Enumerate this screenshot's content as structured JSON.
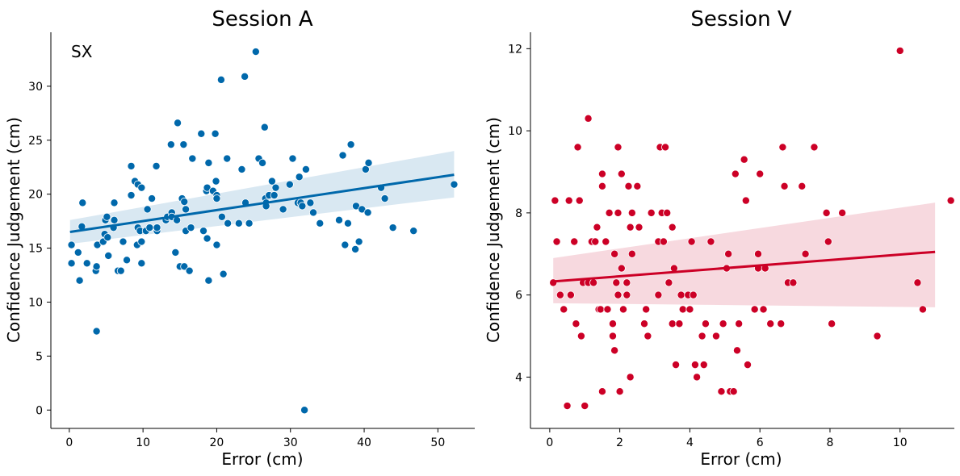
{
  "chart_data": [
    {
      "type": "scatter",
      "title": "Session A",
      "xlabel": "Error (cm)",
      "ylabel": "Confidence Judgement (cm)",
      "annotation": "SX",
      "xlim": [
        -2.5,
        55
      ],
      "ylim": [
        -1.7,
        35
      ],
      "xticks": [
        0,
        10,
        20,
        30,
        40,
        50
      ],
      "yticks": [
        0,
        5,
        10,
        15,
        20,
        25,
        30
      ],
      "color": "#0068ab",
      "regression": {
        "x": [
          0.1,
          52.2
        ],
        "y": [
          16.5,
          21.8
        ],
        "ci_lower": [
          15.4,
          19.7
        ],
        "ci_upper": [
          17.6,
          24.0
        ]
      },
      "points": [
        [
          0.3,
          15.3
        ],
        [
          0.3,
          13.6
        ],
        [
          1.2,
          14.6
        ],
        [
          1.4,
          12.0
        ],
        [
          1.7,
          17.0
        ],
        [
          1.8,
          19.2
        ],
        [
          2.4,
          13.6
        ],
        [
          3.6,
          12.9
        ],
        [
          3.7,
          13.3
        ],
        [
          3.8,
          15.3
        ],
        [
          3.7,
          7.3
        ],
        [
          4.6,
          15.6
        ],
        [
          4.8,
          16.3
        ],
        [
          4.9,
          17.6
        ],
        [
          5.1,
          17.9
        ],
        [
          5.2,
          16.0
        ],
        [
          5.3,
          14.3
        ],
        [
          6.0,
          16.9
        ],
        [
          6.1,
          17.6
        ],
        [
          6.1,
          19.2
        ],
        [
          6.6,
          12.9
        ],
        [
          7.0,
          12.9
        ],
        [
          7.3,
          15.6
        ],
        [
          7.8,
          13.9
        ],
        [
          8.4,
          19.9
        ],
        [
          8.4,
          22.6
        ],
        [
          8.9,
          21.2
        ],
        [
          9.2,
          15.3
        ],
        [
          9.3,
          20.9
        ],
        [
          9.3,
          16.9
        ],
        [
          9.6,
          16.6
        ],
        [
          9.8,
          13.6
        ],
        [
          9.8,
          15.6
        ],
        [
          9.8,
          20.6
        ],
        [
          10.4,
          16.6
        ],
        [
          10.6,
          18.6
        ],
        [
          10.9,
          16.9
        ],
        [
          11.2,
          19.6
        ],
        [
          11.8,
          22.6
        ],
        [
          11.9,
          16.6
        ],
        [
          11.9,
          16.9
        ],
        [
          13.1,
          17.6
        ],
        [
          13.3,
          17.9
        ],
        [
          13.8,
          24.6
        ],
        [
          13.9,
          18.3
        ],
        [
          13.9,
          17.9
        ],
        [
          14.4,
          14.6
        ],
        [
          14.6,
          17.6
        ],
        [
          14.7,
          26.6
        ],
        [
          15.0,
          13.3
        ],
        [
          15.3,
          19.6
        ],
        [
          15.5,
          24.6
        ],
        [
          15.6,
          19.3
        ],
        [
          15.6,
          13.3
        ],
        [
          15.8,
          16.6
        ],
        [
          15.8,
          18.6
        ],
        [
          16.3,
          12.9
        ],
        [
          16.5,
          16.9
        ],
        [
          16.7,
          23.3
        ],
        [
          17.9,
          25.6
        ],
        [
          18.2,
          16.6
        ],
        [
          18.6,
          20.3
        ],
        [
          18.7,
          20.6
        ],
        [
          18.7,
          15.9
        ],
        [
          18.9,
          22.9
        ],
        [
          18.9,
          12.0
        ],
        [
          19.5,
          20.3
        ],
        [
          19.8,
          25.6
        ],
        [
          19.9,
          21.2
        ],
        [
          20.0,
          19.9
        ],
        [
          20.0,
          19.6
        ],
        [
          20.0,
          15.3
        ],
        [
          20.6,
          30.6
        ],
        [
          20.7,
          17.9
        ],
        [
          20.9,
          12.6
        ],
        [
          21.4,
          23.3
        ],
        [
          21.5,
          17.3
        ],
        [
          23.0,
          17.3
        ],
        [
          23.4,
          22.3
        ],
        [
          23.8,
          30.9
        ],
        [
          23.9,
          19.2
        ],
        [
          24.4,
          17.3
        ],
        [
          25.3,
          33.2
        ],
        [
          25.7,
          23.3
        ],
        [
          26.2,
          22.9
        ],
        [
          26.5,
          26.2
        ],
        [
          26.6,
          19.6
        ],
        [
          26.7,
          19.2
        ],
        [
          26.7,
          18.9
        ],
        [
          27.1,
          19.9
        ],
        [
          27.5,
          21.2
        ],
        [
          27.8,
          19.9
        ],
        [
          28.0,
          20.6
        ],
        [
          29.0,
          18.6
        ],
        [
          29.9,
          20.9
        ],
        [
          30.3,
          23.3
        ],
        [
          31.0,
          19.2
        ],
        [
          31.2,
          21.6
        ],
        [
          31.4,
          19.2
        ],
        [
          31.6,
          18.9
        ],
        [
          32.1,
          22.3
        ],
        [
          31.9,
          0.0
        ],
        [
          32.7,
          19.2
        ],
        [
          33.1,
          18.3
        ],
        [
          34.0,
          17.3
        ],
        [
          36.6,
          17.6
        ],
        [
          37.1,
          23.6
        ],
        [
          37.4,
          15.3
        ],
        [
          37.8,
          17.3
        ],
        [
          38.2,
          24.6
        ],
        [
          38.8,
          14.9
        ],
        [
          38.9,
          18.9
        ],
        [
          39.3,
          15.6
        ],
        [
          39.7,
          18.6
        ],
        [
          40.2,
          22.3
        ],
        [
          40.5,
          18.3
        ],
        [
          40.6,
          22.9
        ],
        [
          42.3,
          20.6
        ],
        [
          42.8,
          19.6
        ],
        [
          43.9,
          16.9
        ],
        [
          46.7,
          16.6
        ],
        [
          52.2,
          20.9
        ]
      ]
    },
    {
      "type": "scatter",
      "title": "Session V",
      "xlabel": "Error (cm)",
      "ylabel": "Confidence Judgement (cm)",
      "annotation": "",
      "xlim": [
        -0.55,
        11.55
      ],
      "ylim": [
        2.75,
        12.4
      ],
      "xticks": [
        0,
        2,
        4,
        6,
        8,
        10
      ],
      "yticks": [
        4,
        6,
        8,
        10,
        12
      ],
      "color": "#cc0026",
      "regression": {
        "x": [
          0.1,
          11.0
        ],
        "y": [
          6.33,
          7.05
        ],
        "ci_lower": [
          5.8,
          5.7
        ],
        "ci_upper": [
          6.9,
          8.25
        ]
      },
      "points": [
        [
          0.1,
          6.3
        ],
        [
          0.15,
          8.3
        ],
        [
          0.2,
          7.3
        ],
        [
          0.3,
          6.0
        ],
        [
          0.4,
          5.65
        ],
        [
          0.5,
          3.3
        ],
        [
          0.55,
          8.3
        ],
        [
          0.6,
          6.0
        ],
        [
          0.7,
          7.3
        ],
        [
          0.75,
          5.3
        ],
        [
          0.8,
          9.6
        ],
        [
          0.85,
          8.3
        ],
        [
          0.9,
          5.0
        ],
        [
          0.95,
          6.3
        ],
        [
          1.0,
          3.3
        ],
        [
          1.1,
          10.3
        ],
        [
          1.1,
          6.3
        ],
        [
          1.2,
          7.3
        ],
        [
          1.25,
          6.3
        ],
        [
          1.3,
          7.3
        ],
        [
          1.35,
          7.65
        ],
        [
          1.4,
          5.65
        ],
        [
          1.45,
          5.65
        ],
        [
          1.5,
          3.65
        ],
        [
          1.5,
          8.95
        ],
        [
          1.5,
          8.65
        ],
        [
          1.6,
          7.3
        ],
        [
          1.65,
          5.65
        ],
        [
          1.7,
          8.0
        ],
        [
          1.8,
          5.0
        ],
        [
          1.8,
          5.3
        ],
        [
          1.85,
          7.0
        ],
        [
          1.85,
          4.65
        ],
        [
          1.9,
          6.3
        ],
        [
          1.95,
          6.0
        ],
        [
          1.95,
          9.6
        ],
        [
          1.95,
          8.0
        ],
        [
          2.0,
          3.65
        ],
        [
          2.05,
          6.65
        ],
        [
          2.05,
          8.95
        ],
        [
          2.1,
          5.65
        ],
        [
          2.2,
          6.3
        ],
        [
          2.2,
          6.0
        ],
        [
          2.25,
          8.65
        ],
        [
          2.3,
          7.65
        ],
        [
          2.3,
          4.0
        ],
        [
          2.35,
          8.0
        ],
        [
          2.35,
          7.0
        ],
        [
          2.5,
          8.65
        ],
        [
          2.55,
          7.65
        ],
        [
          2.7,
          5.3
        ],
        [
          2.75,
          5.65
        ],
        [
          2.8,
          5.0
        ],
        [
          2.9,
          8.0
        ],
        [
          3.1,
          6.0
        ],
        [
          3.1,
          7.3
        ],
        [
          3.15,
          9.6
        ],
        [
          3.2,
          8.0
        ],
        [
          3.25,
          7.3
        ],
        [
          3.3,
          9.6
        ],
        [
          3.35,
          8.0
        ],
        [
          3.4,
          6.3
        ],
        [
          3.5,
          5.3
        ],
        [
          3.5,
          7.65
        ],
        [
          3.55,
          6.65
        ],
        [
          3.6,
          4.3
        ],
        [
          3.7,
          5.3
        ],
        [
          3.75,
          6.0
        ],
        [
          3.8,
          5.65
        ],
        [
          3.95,
          6.0
        ],
        [
          4.0,
          5.65
        ],
        [
          4.05,
          7.3
        ],
        [
          4.1,
          6.0
        ],
        [
          4.15,
          4.3
        ],
        [
          4.2,
          4.0
        ],
        [
          4.35,
          5.0
        ],
        [
          4.4,
          4.3
        ],
        [
          4.45,
          5.3
        ],
        [
          4.6,
          7.3
        ],
        [
          4.75,
          5.0
        ],
        [
          4.9,
          3.65
        ],
        [
          4.95,
          5.3
        ],
        [
          5.05,
          6.65
        ],
        [
          5.1,
          7.0
        ],
        [
          5.15,
          3.65
        ],
        [
          5.25,
          3.65
        ],
        [
          5.3,
          8.95
        ],
        [
          5.35,
          4.65
        ],
        [
          5.4,
          5.3
        ],
        [
          5.55,
          9.3
        ],
        [
          5.6,
          8.3
        ],
        [
          5.65,
          4.3
        ],
        [
          5.85,
          5.65
        ],
        [
          5.95,
          6.65
        ],
        [
          5.95,
          7.0
        ],
        [
          6.0,
          8.95
        ],
        [
          6.1,
          5.65
        ],
        [
          6.15,
          6.65
        ],
        [
          6.3,
          5.3
        ],
        [
          6.6,
          5.3
        ],
        [
          6.65,
          9.6
        ],
        [
          6.7,
          8.65
        ],
        [
          6.8,
          6.3
        ],
        [
          6.95,
          6.3
        ],
        [
          7.2,
          8.65
        ],
        [
          7.3,
          7.0
        ],
        [
          7.55,
          9.6
        ],
        [
          7.9,
          8.0
        ],
        [
          7.95,
          7.3
        ],
        [
          8.05,
          5.3
        ],
        [
          8.35,
          8.0
        ],
        [
          9.35,
          5.0
        ],
        [
          10.0,
          11.95
        ],
        [
          10.5,
          6.3
        ],
        [
          10.65,
          5.65
        ],
        [
          11.45,
          8.3
        ]
      ]
    }
  ]
}
